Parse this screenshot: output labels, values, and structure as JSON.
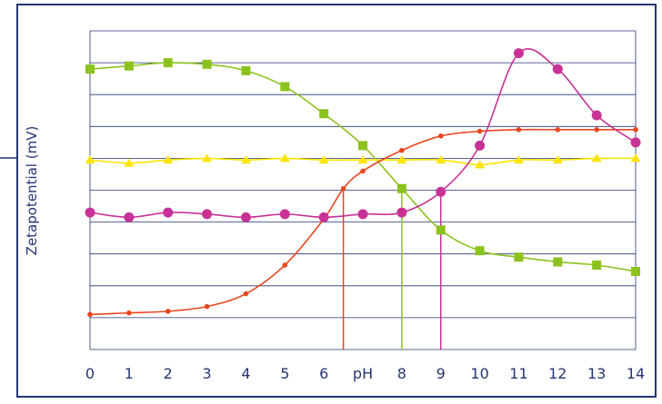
{
  "chart_data": {
    "type": "line",
    "xlabel": "",
    "ylabel": "Zetapotential (mV)",
    "x_tick_labels": [
      "0",
      "1",
      "2",
      "3",
      "4",
      "5",
      "6",
      "pH",
      "8",
      "9",
      "10",
      "11",
      "12",
      "13",
      "14"
    ],
    "xlim": [
      0,
      14
    ],
    "ylim": [
      0,
      10
    ],
    "grid": true,
    "legend": "none",
    "colors": {
      "frame": "#253573",
      "grid": "#253573",
      "text": "#253573",
      "green": "#8cc21e",
      "yellow": "#ffe400",
      "red": "#e8461e",
      "magenta": "#c83296"
    },
    "series": [
      {
        "color": "green",
        "marker": "square",
        "x": [
          0,
          1,
          2,
          3,
          4,
          5,
          6,
          7,
          8,
          9,
          10,
          11,
          12,
          13,
          14
        ],
        "y": [
          8.8,
          8.9,
          9.0,
          8.95,
          8.75,
          8.25,
          7.4,
          6.4,
          5.05,
          3.75,
          3.1,
          2.9,
          2.75,
          2.65,
          2.45
        ]
      },
      {
        "color": "yellow",
        "marker": "triangle",
        "x": [
          0,
          1,
          2,
          3,
          4,
          5,
          6,
          7,
          8,
          9,
          10,
          11,
          12,
          13,
          14
        ],
        "y": [
          5.95,
          5.85,
          5.95,
          6.0,
          5.95,
          6.0,
          5.95,
          5.95,
          5.95,
          5.95,
          5.8,
          5.95,
          5.95,
          6.0,
          6.0
        ]
      },
      {
        "color": "red",
        "marker": "dot",
        "x": [
          0,
          1,
          2,
          3,
          4,
          5,
          6,
          6.5,
          7,
          8,
          9,
          10,
          11,
          12,
          13,
          14
        ],
        "y": [
          1.1,
          1.15,
          1.2,
          1.35,
          1.75,
          2.65,
          4.1,
          5.05,
          5.6,
          6.25,
          6.7,
          6.85,
          6.9,
          6.9,
          6.9,
          6.9
        ]
      },
      {
        "color": "magenta",
        "marker": "circle",
        "x": [
          0,
          1,
          2,
          3,
          4,
          5,
          6,
          7,
          8,
          9,
          10,
          11,
          12,
          13,
          14
        ],
        "y": [
          4.3,
          4.15,
          4.3,
          4.25,
          4.15,
          4.25,
          4.15,
          4.25,
          4.3,
          4.95,
          6.4,
          9.3,
          8.8,
          7.35,
          6.5
        ]
      }
    ],
    "drop_lines": [
      {
        "color": "red",
        "x": 6.5,
        "y": 5.05
      },
      {
        "color": "green",
        "x": 8,
        "y": 5.05
      },
      {
        "color": "magenta",
        "x": 9,
        "y": 4.95
      }
    ]
  }
}
